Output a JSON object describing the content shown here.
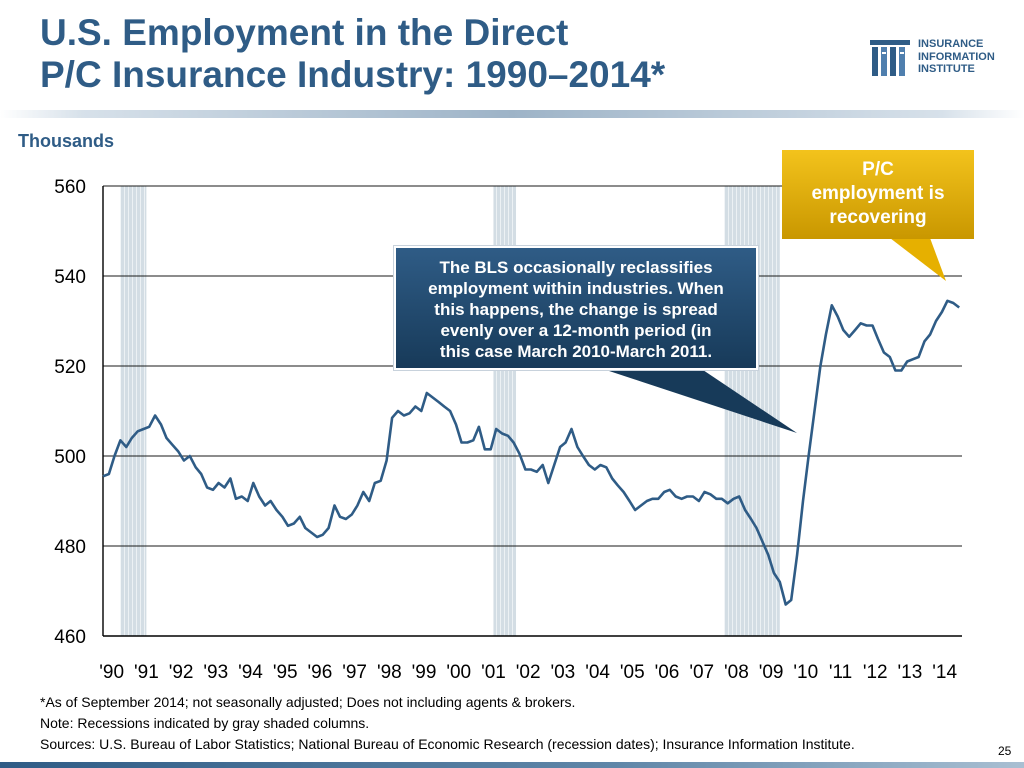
{
  "slide": {
    "title_line1": "U.S. Employment in the Direct",
    "title_line2": "P/C Insurance Industry: 1990–2014*",
    "units_label": "Thousands",
    "page_number": "25"
  },
  "logo": {
    "line1": "INSURANCE",
    "line2": "INFORMATION",
    "line3": "INSTITUTE",
    "icon": "iii-logo-icon"
  },
  "callouts": {
    "recovering": {
      "line1": "P/C",
      "line2": "employment is",
      "line3": "recovering"
    },
    "bls": {
      "line1": "The BLS occasionally reclassifies",
      "line2": "employment within industries. When",
      "line3": "this happens, the change is spread",
      "line4": "evenly over a 12-month period (in",
      "line5": "this case March 2010-March 2011."
    }
  },
  "notes": {
    "line1": "*As of September 2014; not seasonally adjusted; Does not including agents & brokers.",
    "line2": "Note: Recessions indicated by gray shaded columns.",
    "line3": "Sources: U.S. Bureau of Labor Statistics;  National Bureau of Economic Research (recession dates); Insurance Information Institute."
  },
  "colors": {
    "accent": "#2f5c86",
    "series": "#2f5c86",
    "recession": "#d3dde4",
    "gold": "#e6b000"
  },
  "chart_data": {
    "type": "line",
    "title": "U.S. Employment in the Direct P/C Insurance Industry: 1990–2014*",
    "ylabel": "Thousands",
    "xlabel": "",
    "ylim": [
      460,
      560
    ],
    "yticks": [
      460,
      480,
      500,
      520,
      540,
      560
    ],
    "ytick_labels": [
      "460",
      "480",
      "500",
      "520",
      "540",
      "560"
    ],
    "xlim": [
      1990.0,
      2014.75
    ],
    "xticks": [
      "'90",
      "'91",
      "'92",
      "'93",
      "'94",
      "'95",
      "'96",
      "'97",
      "'98",
      "'99",
      "'00",
      "'01",
      "'02",
      "'03",
      "'04",
      "'05",
      "'06",
      "'07",
      "'08",
      "'09",
      "'10",
      "'11",
      "'12",
      "'13",
      "'14"
    ],
    "grid": true,
    "recessions": [
      [
        1990.5,
        1991.25
      ],
      [
        2001.25,
        2001.9
      ],
      [
        2007.9,
        2009.5
      ]
    ],
    "series": [
      {
        "name": "P/C employment",
        "points": [
          [
            1990.0,
            495.5
          ],
          [
            1990.17,
            496
          ],
          [
            1990.33,
            500
          ],
          [
            1990.5,
            503.5
          ],
          [
            1990.67,
            502
          ],
          [
            1990.83,
            504
          ],
          [
            1991.0,
            505.5
          ],
          [
            1991.17,
            506
          ],
          [
            1991.33,
            506.5
          ],
          [
            1991.5,
            509
          ],
          [
            1991.67,
            507
          ],
          [
            1991.83,
            504
          ],
          [
            1992.0,
            502.5
          ],
          [
            1992.17,
            501
          ],
          [
            1992.33,
            499
          ],
          [
            1992.5,
            500
          ],
          [
            1992.67,
            497.5
          ],
          [
            1992.83,
            496
          ],
          [
            1993.0,
            493
          ],
          [
            1993.17,
            492.5
          ],
          [
            1993.33,
            494
          ],
          [
            1993.5,
            493
          ],
          [
            1993.67,
            495
          ],
          [
            1993.83,
            490.5
          ],
          [
            1994.0,
            491
          ],
          [
            1994.17,
            490
          ],
          [
            1994.33,
            494
          ],
          [
            1994.5,
            491
          ],
          [
            1994.67,
            489
          ],
          [
            1994.83,
            490
          ],
          [
            1995.0,
            488
          ],
          [
            1995.17,
            486.5
          ],
          [
            1995.33,
            484.5
          ],
          [
            1995.5,
            485
          ],
          [
            1995.67,
            486.5
          ],
          [
            1995.83,
            484
          ],
          [
            1996.0,
            483
          ],
          [
            1996.17,
            482
          ],
          [
            1996.33,
            482.5
          ],
          [
            1996.5,
            484
          ],
          [
            1996.67,
            489
          ],
          [
            1996.83,
            486.5
          ],
          [
            1997.0,
            486
          ],
          [
            1997.17,
            487
          ],
          [
            1997.33,
            489
          ],
          [
            1997.5,
            492
          ],
          [
            1997.67,
            490
          ],
          [
            1997.83,
            494
          ],
          [
            1998.0,
            494.5
          ],
          [
            1998.17,
            499
          ],
          [
            1998.33,
            508.5
          ],
          [
            1998.5,
            510
          ],
          [
            1998.67,
            509
          ],
          [
            1998.83,
            509.5
          ],
          [
            1999.0,
            511
          ],
          [
            1999.17,
            510
          ],
          [
            1999.33,
            514
          ],
          [
            1999.5,
            513
          ],
          [
            1999.67,
            512
          ],
          [
            1999.83,
            511
          ],
          [
            2000.0,
            510
          ],
          [
            2000.17,
            507
          ],
          [
            2000.33,
            503
          ],
          [
            2000.5,
            503
          ],
          [
            2000.67,
            503.5
          ],
          [
            2000.83,
            506.5
          ],
          [
            2001.0,
            501.5
          ],
          [
            2001.17,
            501.5
          ],
          [
            2001.33,
            506
          ],
          [
            2001.5,
            505
          ],
          [
            2001.67,
            504.5
          ],
          [
            2001.83,
            503
          ],
          [
            2002.0,
            500.5
          ],
          [
            2002.17,
            497
          ],
          [
            2002.33,
            497
          ],
          [
            2002.5,
            496.5
          ],
          [
            2002.67,
            498
          ],
          [
            2002.83,
            494
          ],
          [
            2003.0,
            498
          ],
          [
            2003.17,
            502
          ],
          [
            2003.33,
            503
          ],
          [
            2003.5,
            506
          ],
          [
            2003.67,
            502
          ],
          [
            2003.83,
            500
          ],
          [
            2004.0,
            498
          ],
          [
            2004.17,
            497
          ],
          [
            2004.33,
            498
          ],
          [
            2004.5,
            497.5
          ],
          [
            2004.67,
            495
          ],
          [
            2004.83,
            493.5
          ],
          [
            2005.0,
            492
          ],
          [
            2005.17,
            490
          ],
          [
            2005.33,
            488
          ],
          [
            2005.5,
            489
          ],
          [
            2005.67,
            490
          ],
          [
            2005.83,
            490.5
          ],
          [
            2006.0,
            490.5
          ],
          [
            2006.17,
            492
          ],
          [
            2006.33,
            492.5
          ],
          [
            2006.5,
            491
          ],
          [
            2006.67,
            490.5
          ],
          [
            2006.83,
            491
          ],
          [
            2007.0,
            491
          ],
          [
            2007.17,
            490
          ],
          [
            2007.33,
            492
          ],
          [
            2007.5,
            491.5
          ],
          [
            2007.67,
            490.5
          ],
          [
            2007.83,
            490.5
          ],
          [
            2008.0,
            489.5
          ],
          [
            2008.17,
            490.5
          ],
          [
            2008.33,
            491
          ],
          [
            2008.5,
            488
          ],
          [
            2008.67,
            486
          ],
          [
            2008.83,
            484
          ],
          [
            2009.0,
            481
          ],
          [
            2009.17,
            478
          ],
          [
            2009.33,
            474
          ],
          [
            2009.5,
            472
          ],
          [
            2009.67,
            467
          ],
          [
            2009.83,
            468
          ],
          [
            2010.0,
            478
          ],
          [
            2010.17,
            490
          ],
          [
            2010.33,
            500
          ],
          [
            2010.5,
            510
          ],
          [
            2010.67,
            520
          ],
          [
            2010.83,
            527
          ],
          [
            2011.0,
            533.5
          ],
          [
            2011.17,
            531
          ],
          [
            2011.33,
            528
          ],
          [
            2011.5,
            526.5
          ],
          [
            2011.67,
            528
          ],
          [
            2011.83,
            529.5
          ],
          [
            2012.0,
            529
          ],
          [
            2012.17,
            529
          ],
          [
            2012.33,
            526
          ],
          [
            2012.5,
            523
          ],
          [
            2012.67,
            522
          ],
          [
            2012.83,
            519
          ],
          [
            2013.0,
            519
          ],
          [
            2013.17,
            521
          ],
          [
            2013.33,
            521.5
          ],
          [
            2013.5,
            522
          ],
          [
            2013.67,
            525.5
          ],
          [
            2013.83,
            527
          ],
          [
            2014.0,
            530
          ],
          [
            2014.17,
            532
          ],
          [
            2014.33,
            534.5
          ],
          [
            2014.5,
            534
          ],
          [
            2014.67,
            533
          ]
        ]
      }
    ],
    "annotations": [
      "P/C employment is recovering",
      "The BLS occasionally reclassifies employment within industries. When this happens, the change is spread evenly over a 12-month period (in this case March 2010-March 2011."
    ]
  }
}
